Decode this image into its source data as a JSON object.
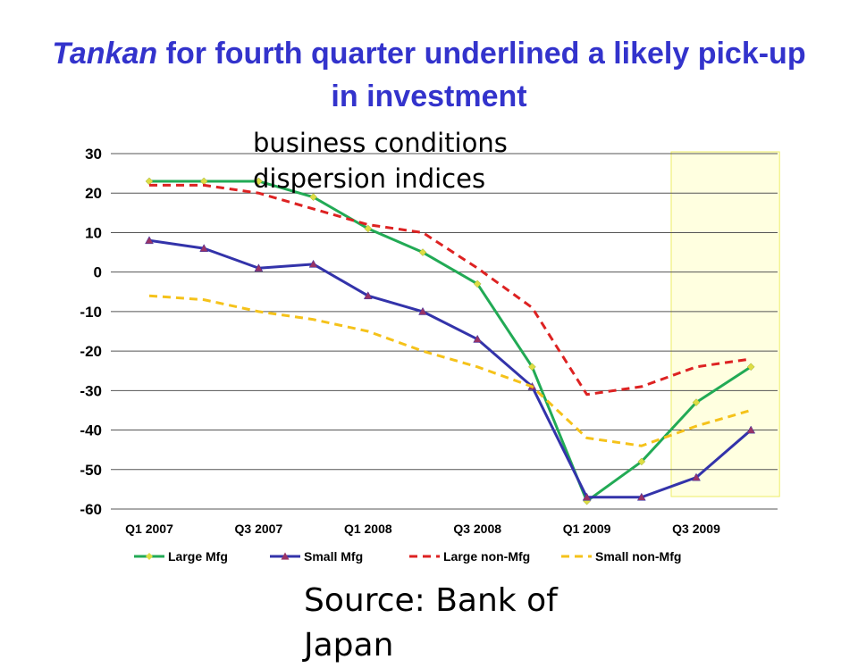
{
  "slide": {
    "title_italic": "Tankan",
    "title_rest": " for fourth quarter underlined a likely pick-up in investment",
    "subtitle_line1": "business conditions",
    "subtitle_line2": "dispersion indices",
    "source": "Source: Bank of Japan"
  },
  "chart_data": {
    "type": "line",
    "title": "",
    "xlabel": "",
    "ylabel": "",
    "ylim": [
      -60,
      30
    ],
    "yticks": [
      30,
      20,
      10,
      0,
      -10,
      -20,
      -30,
      -40,
      -50,
      -60
    ],
    "x": [
      "Q1 2007",
      "Q2 2007",
      "Q3 2007",
      "Q4 2007",
      "Q1 2008",
      "Q2 2008",
      "Q3 2008",
      "Q4 2008",
      "Q1 2009",
      "Q2 2009",
      "Q3 2009",
      "Q4 2009"
    ],
    "xtick_labels": [
      "Q1 2007",
      "Q3 2007",
      "Q1 2008",
      "Q3 2008",
      "Q1 2009",
      "Q3 2009"
    ],
    "grid": true,
    "legend_position": "bottom",
    "highlight_region": {
      "from": "Q3 2009",
      "to": "Q4 2009",
      "color": "#ffffe0"
    },
    "series": [
      {
        "name": "Large Mfg",
        "color": "#22aa55",
        "dash": "solid",
        "marker": "diamond",
        "marker_color": "#dddd44",
        "values": [
          23,
          23,
          23,
          19,
          11,
          5,
          -3,
          -24,
          -58,
          -48,
          -33,
          -24
        ]
      },
      {
        "name": "Small Mfg",
        "color": "#3333aa",
        "dash": "solid",
        "marker": "triangle",
        "marker_color": "#993366",
        "values": [
          8,
          6,
          1,
          2,
          -6,
          -10,
          -17,
          -29,
          -57,
          -57,
          -52,
          -40
        ]
      },
      {
        "name": "Large non-Mfg",
        "color": "#dd2222",
        "dash": "dashed",
        "marker": "none",
        "values": [
          22,
          22,
          20,
          16,
          12,
          10,
          1,
          -9,
          -31,
          -29,
          -24,
          -22
        ]
      },
      {
        "name": "Small non-Mfg",
        "color": "#f5c21a",
        "dash": "dashed",
        "marker": "none",
        "values": [
          -6,
          -7,
          -10,
          -12,
          -15,
          -20,
          -24,
          -29,
          -42,
          -44,
          -39,
          -35
        ]
      }
    ]
  }
}
